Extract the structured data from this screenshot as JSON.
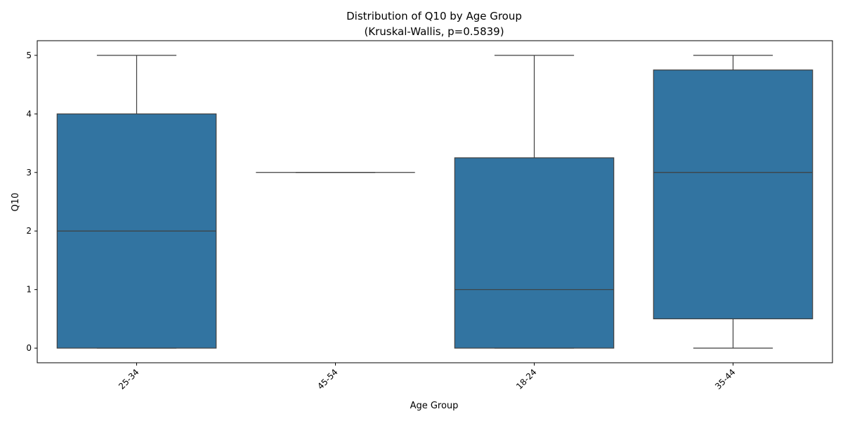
{
  "chart_data": {
    "type": "box",
    "title": "Distribution of Q10 by Age Group",
    "subtitle": "(Kruskal-Wallis, p=0.5839)",
    "xlabel": "Age Group",
    "ylabel": "Q10",
    "categories": [
      "25-34",
      "45-54",
      "18-24",
      "35-44"
    ],
    "boxes": [
      {
        "category": "25-34",
        "whisker_low": 0,
        "q1": 0,
        "median": 2,
        "q3": 4,
        "whisker_high": 5
      },
      {
        "category": "45-54",
        "whisker_low": 3,
        "q1": 3,
        "median": 3,
        "q3": 3,
        "whisker_high": 3
      },
      {
        "category": "18-24",
        "whisker_low": 0,
        "q1": 0,
        "median": 1,
        "q3": 3.25,
        "whisker_high": 5
      },
      {
        "category": "35-44",
        "whisker_low": 0,
        "q1": 0.5,
        "median": 3,
        "q3": 4.75,
        "whisker_high": 5
      }
    ],
    "yticks": [
      0,
      1,
      2,
      3,
      4,
      5
    ],
    "ylim": [
      -0.25,
      5.25
    ],
    "grid": false,
    "box_color": "#3274a1",
    "line_color": "#3f3f3f",
    "xtick_rotation": 45
  }
}
